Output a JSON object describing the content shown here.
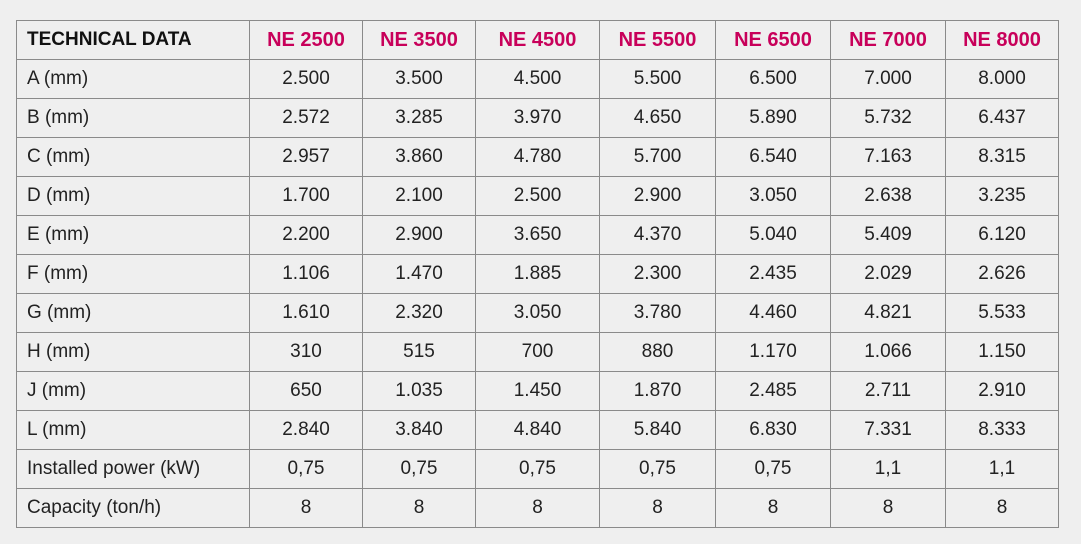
{
  "table": {
    "header_title": "TECHNICAL DATA",
    "models": [
      "NE 2500",
      "NE 3500",
      "NE 4500",
      "NE 5500",
      "NE 6500",
      "NE 7000",
      "NE 8000"
    ],
    "model_color": "#c8005a",
    "rows": [
      {
        "label": "A (mm)",
        "values": [
          "2.500",
          "3.500",
          "4.500",
          "5.500",
          "6.500",
          "7.000",
          "8.000"
        ]
      },
      {
        "label": "B (mm)",
        "values": [
          "2.572",
          "3.285",
          "3.970",
          "4.650",
          "5.890",
          "5.732",
          "6.437"
        ]
      },
      {
        "label": "C (mm)",
        "values": [
          "2.957",
          "3.860",
          "4.780",
          "5.700",
          "6.540",
          "7.163",
          "8.315"
        ]
      },
      {
        "label": "D (mm)",
        "values": [
          "1.700",
          "2.100",
          "2.500",
          "2.900",
          "3.050",
          "2.638",
          "3.235"
        ]
      },
      {
        "label": "E (mm)",
        "values": [
          "2.200",
          "2.900",
          "3.650",
          "4.370",
          "5.040",
          "5.409",
          "6.120"
        ]
      },
      {
        "label": "F (mm)",
        "values": [
          "1.106",
          "1.470",
          "1.885",
          "2.300",
          "2.435",
          "2.029",
          "2.626"
        ]
      },
      {
        "label": "G (mm)",
        "values": [
          "1.610",
          "2.320",
          "3.050",
          "3.780",
          "4.460",
          "4.821",
          "5.533"
        ]
      },
      {
        "label": "H (mm)",
        "values": [
          "310",
          "515",
          "700",
          "880",
          "1.170",
          "1.066",
          "1.150"
        ]
      },
      {
        "label": "J (mm)",
        "values": [
          "650",
          "1.035",
          "1.450",
          "1.870",
          "2.485",
          "2.711",
          "2.910"
        ]
      },
      {
        "label": "L (mm)",
        "values": [
          "2.840",
          "3.840",
          "4.840",
          "5.840",
          "6.830",
          "7.331",
          "8.333"
        ]
      },
      {
        "label": "Installed power (kW)",
        "values": [
          "0,75",
          "0,75",
          "0,75",
          "0,75",
          "0,75",
          "1,1",
          "1,1"
        ]
      },
      {
        "label": "Capacity (ton/h)",
        "values": [
          "8",
          "8",
          "8",
          "8",
          "8",
          "8",
          "8"
        ]
      }
    ]
  }
}
